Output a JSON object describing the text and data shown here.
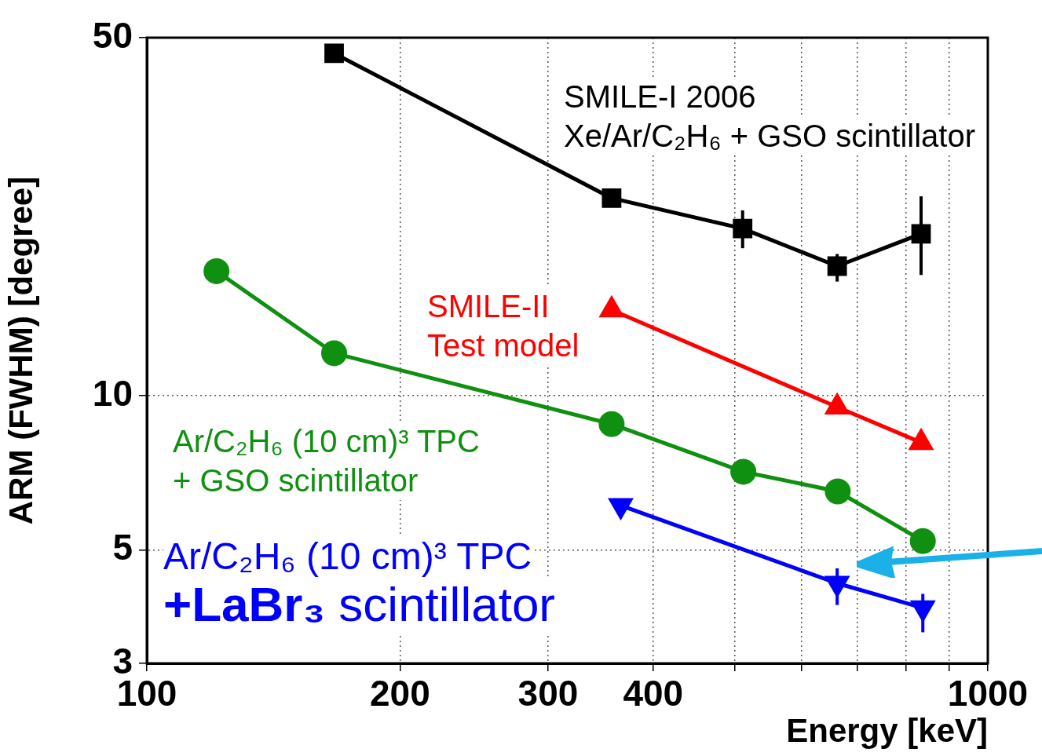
{
  "chart_data": {
    "type": "line",
    "xlabel": "Energy [keV]",
    "ylabel": "ARM (FWHM) [degree]",
    "log": "xy",
    "grid": true,
    "legend": false,
    "line_style": "solid",
    "xlim": [
      100,
      1000
    ],
    "xticks": [
      100,
      200,
      300,
      400,
      {
        "value": 500,
        "label": null
      },
      {
        "value": 600,
        "label": null
      },
      {
        "value": 700,
        "label": null
      },
      {
        "value": 800,
        "label": null
      },
      {
        "value": 900,
        "label": null
      },
      1000
    ],
    "ylim": [
      3,
      50
    ],
    "yticks": [
      3,
      5,
      10,
      50
    ],
    "series": [
      {
        "name": "SMILE-I 2006\nXe/Ar/C₂H₆  + GSO scintillator",
        "color": "#000000",
        "marker": "square",
        "x": [
          167,
          357,
          511,
          662,
          833
        ],
        "values": [
          46.6,
          24.3,
          21.2,
          17.9,
          20.7
        ],
        "errors": [
          null,
          null,
          [
            19.4,
            23.0
          ],
          [
            16.7,
            18.9
          ],
          [
            17.2,
            24.5
          ]
        ]
      },
      {
        "name": "SMILE-II\nTest model",
        "color": "#ff0000",
        "marker": "triangle",
        "x": [
          357,
          662,
          833
        ],
        "values": [
          14.7,
          9.5,
          8.1
        ]
      },
      {
        "name": "Ar/C₂H₆ (10 cm)³ TPC\n+ GSO scintillator",
        "color": "#109010",
        "marker": "circle",
        "x": [
          121,
          167,
          357,
          512,
          663,
          837
        ],
        "values": [
          17.5,
          12.1,
          8.8,
          7.1,
          6.5,
          5.2
        ]
      },
      {
        "name": "Ar/C₂H₆ (10 cm)³ TPC\n+LaBr₃ scintillator",
        "color": "#0000ff",
        "marker": "triangle-down",
        "x": [
          366,
          662,
          837
        ],
        "values": [
          6.1,
          4.3,
          3.85
        ],
        "errors": [
          null,
          [
            3.9,
            4.6
          ],
          [
            3.45,
            4.1
          ]
        ]
      }
    ]
  }
}
